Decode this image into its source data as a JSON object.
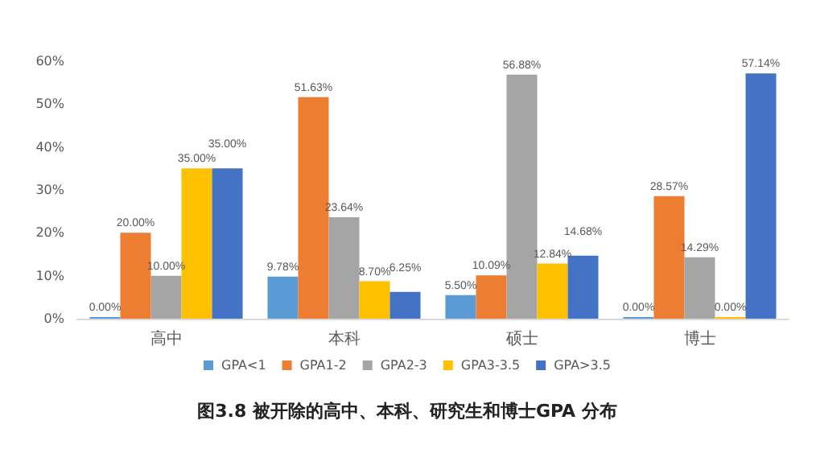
{
  "chart_data": {
    "type": "bar",
    "title": "图3.8 被开除的高中、本科、研究生和博士GPA 分布",
    "categories": [
      "高中",
      "本科",
      "硕士",
      "博士"
    ],
    "series": [
      {
        "name": "GPA<1",
        "color": "#5b9bd5",
        "values": [
          0,
          9.78,
          5.5,
          0
        ],
        "value_labels": [
          "0.00%",
          "9.78%",
          "5.50%",
          "0.00%"
        ]
      },
      {
        "name": "GPA1-2",
        "color": "#ed7d31",
        "values": [
          20,
          51.63,
          10.09,
          28.57
        ],
        "value_labels": [
          "20.00%",
          "51.63%",
          "10.09%",
          "28.57%"
        ]
      },
      {
        "name": "GPA2-3",
        "color": "#a5a5a5",
        "values": [
          10,
          23.64,
          56.88,
          14.29
        ],
        "value_labels": [
          "10.00%",
          "23.64%",
          "56.88%",
          "14.29%"
        ]
      },
      {
        "name": "GPA3-3.5",
        "color": "#ffc000",
        "values": [
          35,
          8.7,
          12.84,
          0
        ],
        "value_labels": [
          "35.00%",
          "8.70%",
          "12.84%",
          "0.00%"
        ]
      },
      {
        "name": "GPA>3.5",
        "color": "#4472c4",
        "values": [
          35,
          6.25,
          14.68,
          57.14
        ],
        "value_labels": [
          "35.00%",
          "6.25%",
          "14.68%",
          "57.14%"
        ]
      }
    ],
    "ylim": [
      0,
      60
    ],
    "yticks": [
      {
        "value": 0,
        "label": "0%"
      },
      {
        "value": 10,
        "label": "10%"
      },
      {
        "value": 20,
        "label": "20%"
      },
      {
        "value": 30,
        "label": "30%"
      },
      {
        "value": 40,
        "label": "40%"
      },
      {
        "value": 50,
        "label": "50%"
      },
      {
        "value": 60,
        "label": "60%"
      }
    ],
    "legend": "bottom"
  }
}
